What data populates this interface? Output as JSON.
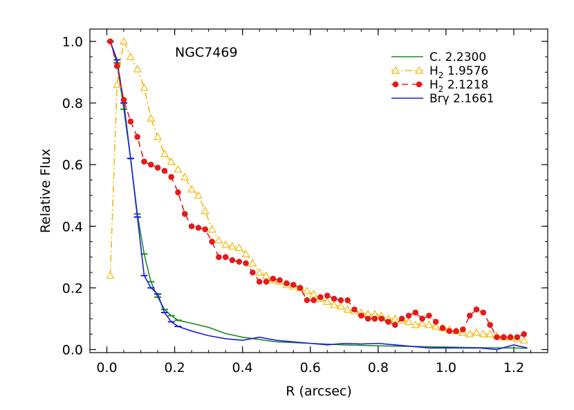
{
  "chart_data": {
    "type": "line",
    "annotation": "NGC7469",
    "xlabel": "R (arcsec)",
    "ylabel": "Relative Flux",
    "xlim": [
      -0.05,
      1.3
    ],
    "ylim": [
      -0.01,
      1.04
    ],
    "xticks": [
      0.0,
      0.2,
      0.4,
      0.6,
      0.8,
      1.0,
      1.2
    ],
    "xtick_labels": [
      "0.0",
      "0.2",
      "0.4",
      "0.6",
      "0.8",
      "1.0",
      "1.2"
    ],
    "yticks": [
      0.0,
      0.2,
      0.4,
      0.6,
      0.8,
      1.0
    ],
    "ytick_labels": [
      "0.0",
      "0.2",
      "0.4",
      "0.6",
      "0.8",
      "1.0"
    ],
    "grid": false,
    "legend_position": "top-right",
    "series": [
      {
        "name": "C. 2.2300",
        "label_parts": [
          "C.",
          "",
          " 2.2300"
        ],
        "color": "#1a8c1a",
        "style": "solid",
        "marker": "none",
        "x": [
          0.01,
          0.03,
          0.05,
          0.07,
          0.09,
          0.11,
          0.13,
          0.15,
          0.17,
          0.19,
          0.21,
          0.25,
          0.3,
          0.35,
          0.4,
          0.5,
          0.6,
          0.7,
          0.8,
          0.9,
          1.0,
          1.1,
          1.2,
          1.24
        ],
        "y": [
          1.0,
          0.93,
          0.78,
          0.62,
          0.44,
          0.31,
          0.22,
          0.17,
          0.13,
          0.11,
          0.095,
          0.085,
          0.072,
          0.052,
          0.04,
          0.025,
          0.02,
          0.015,
          0.012,
          0.01,
          0.008,
          0.006,
          0.005,
          0.004
        ]
      },
      {
        "name": "H2 1.9576",
        "label_parts": [
          "H",
          "2",
          " 1.9576"
        ],
        "color": "#f2b90c",
        "style": "dash-dot",
        "marker": "triangle",
        "x": [
          0.01,
          0.03,
          0.05,
          0.07,
          0.09,
          0.11,
          0.13,
          0.15,
          0.17,
          0.19,
          0.21,
          0.23,
          0.25,
          0.27,
          0.29,
          0.31,
          0.33,
          0.35,
          0.37,
          0.39,
          0.41,
          0.43,
          0.45,
          0.47,
          0.49,
          0.51,
          0.53,
          0.55,
          0.57,
          0.59,
          0.61,
          0.63,
          0.65,
          0.67,
          0.69,
          0.71,
          0.73,
          0.75,
          0.77,
          0.79,
          0.81,
          0.83,
          0.85,
          0.87,
          0.89,
          0.91,
          0.93,
          0.95,
          0.97,
          0.99,
          1.01,
          1.03,
          1.05,
          1.07,
          1.09,
          1.11,
          1.13,
          1.15,
          1.17,
          1.19,
          1.21,
          1.23
        ],
        "y": [
          0.24,
          0.86,
          1.0,
          0.95,
          0.91,
          0.85,
          0.75,
          0.69,
          0.635,
          0.61,
          0.585,
          0.56,
          0.52,
          0.5,
          0.45,
          0.39,
          0.355,
          0.34,
          0.335,
          0.33,
          0.31,
          0.28,
          0.25,
          0.24,
          0.225,
          0.22,
          0.21,
          0.205,
          0.2,
          0.19,
          0.18,
          0.165,
          0.155,
          0.145,
          0.14,
          0.13,
          0.125,
          0.12,
          0.115,
          0.115,
          0.11,
          0.1,
          0.1,
          0.095,
          0.09,
          0.08,
          0.085,
          0.08,
          0.075,
          0.07,
          0.065,
          0.06,
          0.055,
          0.05,
          0.055,
          0.05,
          0.05,
          0.045,
          0.04,
          0.04,
          0.035,
          0.03
        ]
      },
      {
        "name": "H2 2.1218",
        "label_parts": [
          "H",
          "2",
          " 2.1218"
        ],
        "color": "#e31b1b",
        "style": "dashed",
        "marker": "circle",
        "x": [
          0.01,
          0.03,
          0.05,
          0.07,
          0.09,
          0.11,
          0.13,
          0.15,
          0.17,
          0.19,
          0.21,
          0.23,
          0.25,
          0.27,
          0.29,
          0.31,
          0.33,
          0.35,
          0.37,
          0.39,
          0.41,
          0.43,
          0.45,
          0.47,
          0.49,
          0.51,
          0.53,
          0.55,
          0.57,
          0.59,
          0.61,
          0.63,
          0.65,
          0.67,
          0.69,
          0.71,
          0.73,
          0.75,
          0.77,
          0.79,
          0.81,
          0.83,
          0.85,
          0.87,
          0.89,
          0.91,
          0.93,
          0.95,
          0.97,
          0.99,
          1.01,
          1.03,
          1.05,
          1.07,
          1.09,
          1.11,
          1.13,
          1.15,
          1.17,
          1.19,
          1.21,
          1.23
        ],
        "y": [
          1.0,
          0.92,
          0.81,
          0.74,
          0.69,
          0.61,
          0.6,
          0.59,
          0.58,
          0.56,
          0.51,
          0.44,
          0.4,
          0.395,
          0.39,
          0.35,
          0.3,
          0.3,
          0.29,
          0.285,
          0.28,
          0.25,
          0.22,
          0.22,
          0.23,
          0.225,
          0.215,
          0.21,
          0.2,
          0.16,
          0.16,
          0.17,
          0.175,
          0.165,
          0.16,
          0.16,
          0.13,
          0.11,
          0.1,
          0.1,
          0.1,
          0.09,
          0.08,
          0.1,
          0.11,
          0.12,
          0.1,
          0.11,
          0.09,
          0.07,
          0.06,
          0.06,
          0.065,
          0.11,
          0.13,
          0.12,
          0.08,
          0.04,
          0.04,
          0.04,
          0.04,
          0.05
        ]
      },
      {
        "name": "Brγ 2.1661",
        "label_parts": [
          "Brγ",
          "",
          " 2.1661"
        ],
        "color": "#1a1ae0",
        "style": "solid",
        "marker": "none",
        "x": [
          0.01,
          0.03,
          0.05,
          0.07,
          0.09,
          0.11,
          0.13,
          0.15,
          0.17,
          0.19,
          0.21,
          0.25,
          0.3,
          0.35,
          0.4,
          0.45,
          0.5,
          0.6,
          0.65,
          0.7,
          0.75,
          0.8,
          0.85,
          0.9,
          0.95,
          1.0,
          1.05,
          1.1,
          1.15,
          1.2,
          1.24
        ],
        "y": [
          1.0,
          0.94,
          0.8,
          0.62,
          0.43,
          0.24,
          0.2,
          0.18,
          0.12,
          0.09,
          0.075,
          0.06,
          0.045,
          0.035,
          0.03,
          0.04,
          0.03,
          0.02,
          0.015,
          0.02,
          0.018,
          0.02,
          0.015,
          0.01,
          0.005,
          0.005,
          0.005,
          0.005,
          0.0,
          0.015,
          0.005
        ]
      }
    ]
  }
}
